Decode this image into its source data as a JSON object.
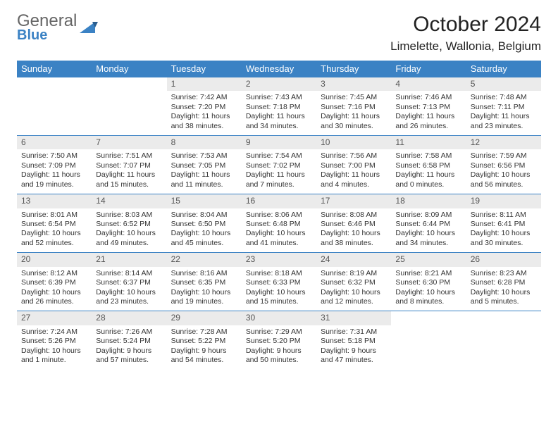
{
  "brand": {
    "name_top": "General",
    "name_bottom": "Blue"
  },
  "header": {
    "title": "October 2024",
    "location": "Limelette, Wallonia, Belgium"
  },
  "colors": {
    "accent": "#3b82c4",
    "daynum_bg": "#ebebeb",
    "text": "#333333",
    "bg": "#ffffff"
  },
  "dow": [
    "Sunday",
    "Monday",
    "Tuesday",
    "Wednesday",
    "Thursday",
    "Friday",
    "Saturday"
  ],
  "weeks": [
    [
      {
        "empty": true
      },
      {
        "empty": true
      },
      {
        "n": "1",
        "sunrise": "7:42 AM",
        "sunset": "7:20 PM",
        "daylight": "11 hours and 38 minutes."
      },
      {
        "n": "2",
        "sunrise": "7:43 AM",
        "sunset": "7:18 PM",
        "daylight": "11 hours and 34 minutes."
      },
      {
        "n": "3",
        "sunrise": "7:45 AM",
        "sunset": "7:16 PM",
        "daylight": "11 hours and 30 minutes."
      },
      {
        "n": "4",
        "sunrise": "7:46 AM",
        "sunset": "7:13 PM",
        "daylight": "11 hours and 26 minutes."
      },
      {
        "n": "5",
        "sunrise": "7:48 AM",
        "sunset": "7:11 PM",
        "daylight": "11 hours and 23 minutes."
      }
    ],
    [
      {
        "n": "6",
        "sunrise": "7:50 AM",
        "sunset": "7:09 PM",
        "daylight": "11 hours and 19 minutes."
      },
      {
        "n": "7",
        "sunrise": "7:51 AM",
        "sunset": "7:07 PM",
        "daylight": "11 hours and 15 minutes."
      },
      {
        "n": "8",
        "sunrise": "7:53 AM",
        "sunset": "7:05 PM",
        "daylight": "11 hours and 11 minutes."
      },
      {
        "n": "9",
        "sunrise": "7:54 AM",
        "sunset": "7:02 PM",
        "daylight": "11 hours and 7 minutes."
      },
      {
        "n": "10",
        "sunrise": "7:56 AM",
        "sunset": "7:00 PM",
        "daylight": "11 hours and 4 minutes."
      },
      {
        "n": "11",
        "sunrise": "7:58 AM",
        "sunset": "6:58 PM",
        "daylight": "11 hours and 0 minutes."
      },
      {
        "n": "12",
        "sunrise": "7:59 AM",
        "sunset": "6:56 PM",
        "daylight": "10 hours and 56 minutes."
      }
    ],
    [
      {
        "n": "13",
        "sunrise": "8:01 AM",
        "sunset": "6:54 PM",
        "daylight": "10 hours and 52 minutes."
      },
      {
        "n": "14",
        "sunrise": "8:03 AM",
        "sunset": "6:52 PM",
        "daylight": "10 hours and 49 minutes."
      },
      {
        "n": "15",
        "sunrise": "8:04 AM",
        "sunset": "6:50 PM",
        "daylight": "10 hours and 45 minutes."
      },
      {
        "n": "16",
        "sunrise": "8:06 AM",
        "sunset": "6:48 PM",
        "daylight": "10 hours and 41 minutes."
      },
      {
        "n": "17",
        "sunrise": "8:08 AM",
        "sunset": "6:46 PM",
        "daylight": "10 hours and 38 minutes."
      },
      {
        "n": "18",
        "sunrise": "8:09 AM",
        "sunset": "6:44 PM",
        "daylight": "10 hours and 34 minutes."
      },
      {
        "n": "19",
        "sunrise": "8:11 AM",
        "sunset": "6:41 PM",
        "daylight": "10 hours and 30 minutes."
      }
    ],
    [
      {
        "n": "20",
        "sunrise": "8:12 AM",
        "sunset": "6:39 PM",
        "daylight": "10 hours and 26 minutes."
      },
      {
        "n": "21",
        "sunrise": "8:14 AM",
        "sunset": "6:37 PM",
        "daylight": "10 hours and 23 minutes."
      },
      {
        "n": "22",
        "sunrise": "8:16 AM",
        "sunset": "6:35 PM",
        "daylight": "10 hours and 19 minutes."
      },
      {
        "n": "23",
        "sunrise": "8:18 AM",
        "sunset": "6:33 PM",
        "daylight": "10 hours and 15 minutes."
      },
      {
        "n": "24",
        "sunrise": "8:19 AM",
        "sunset": "6:32 PM",
        "daylight": "10 hours and 12 minutes."
      },
      {
        "n": "25",
        "sunrise": "8:21 AM",
        "sunset": "6:30 PM",
        "daylight": "10 hours and 8 minutes."
      },
      {
        "n": "26",
        "sunrise": "8:23 AM",
        "sunset": "6:28 PM",
        "daylight": "10 hours and 5 minutes."
      }
    ],
    [
      {
        "n": "27",
        "sunrise": "7:24 AM",
        "sunset": "5:26 PM",
        "daylight": "10 hours and 1 minute."
      },
      {
        "n": "28",
        "sunrise": "7:26 AM",
        "sunset": "5:24 PM",
        "daylight": "9 hours and 57 minutes."
      },
      {
        "n": "29",
        "sunrise": "7:28 AM",
        "sunset": "5:22 PM",
        "daylight": "9 hours and 54 minutes."
      },
      {
        "n": "30",
        "sunrise": "7:29 AM",
        "sunset": "5:20 PM",
        "daylight": "9 hours and 50 minutes."
      },
      {
        "n": "31",
        "sunrise": "7:31 AM",
        "sunset": "5:18 PM",
        "daylight": "9 hours and 47 minutes."
      },
      {
        "empty": true
      },
      {
        "empty": true
      }
    ]
  ],
  "labels": {
    "sunrise": "Sunrise:",
    "sunset": "Sunset:",
    "daylight": "Daylight:"
  }
}
